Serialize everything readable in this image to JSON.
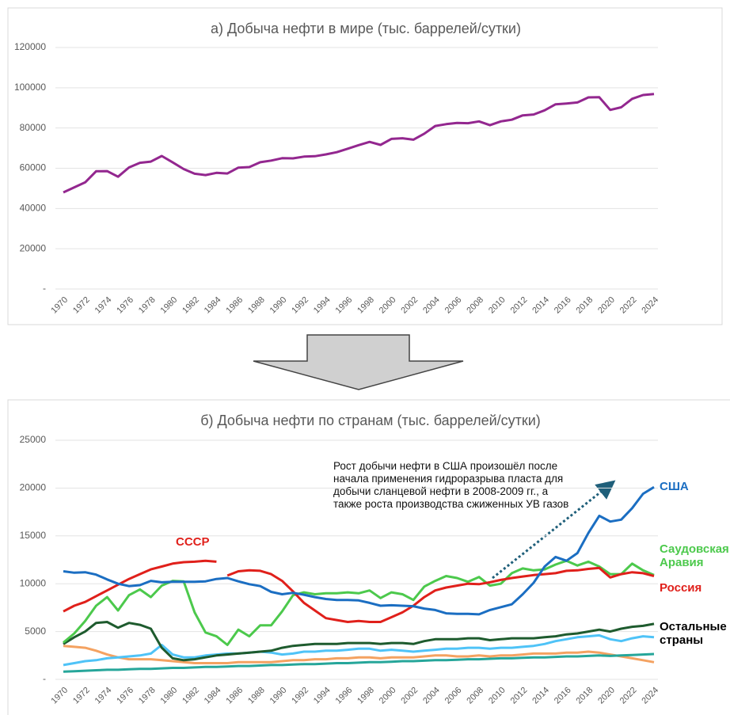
{
  "chart_data": [
    {
      "type": "line",
      "title": "а) Добыча нефти в мире (тыс. баррелей/сутки)",
      "color": "#93278f",
      "grid": true,
      "x": [
        1970,
        1971,
        1972,
        1973,
        1974,
        1975,
        1976,
        1977,
        1978,
        1979,
        1980,
        1981,
        1982,
        1983,
        1984,
        1985,
        1986,
        1987,
        1988,
        1989,
        1990,
        1991,
        1992,
        1993,
        1994,
        1995,
        1996,
        1997,
        1998,
        1999,
        2000,
        2001,
        2002,
        2003,
        2004,
        2005,
        2006,
        2007,
        2008,
        2009,
        2010,
        2011,
        2012,
        2013,
        2014,
        2015,
        2016,
        2017,
        2018,
        2019,
        2020,
        2021,
        2022,
        2023,
        2024
      ],
      "values": [
        48000,
        50500,
        53000,
        58500,
        58600,
        55800,
        60400,
        62700,
        63300,
        66100,
        62900,
        59600,
        57300,
        56600,
        57700,
        57400,
        60300,
        60600,
        63000,
        63800,
        65000,
        64900,
        65800,
        66000,
        66900,
        68000,
        69700,
        71500,
        73100,
        71600,
        74600,
        74900,
        74200,
        77200,
        81000,
        81900,
        82500,
        82400,
        83300,
        81400,
        83300,
        84100,
        86300,
        86700,
        88800,
        91800,
        92200,
        92700,
        95200,
        95300,
        89000,
        90300,
        94500,
        96400,
        96900
      ],
      "xlim": [
        1970,
        2024
      ],
      "xticks": [
        1970,
        1972,
        1974,
        1976,
        1978,
        1980,
        1982,
        1984,
        1986,
        1988,
        1990,
        1992,
        1994,
        1996,
        1998,
        2000,
        2002,
        2004,
        2006,
        2008,
        2010,
        2012,
        2014,
        2016,
        2018,
        2020,
        2022,
        2024
      ],
      "ylim": [
        0,
        120000
      ],
      "yticks": [
        {
          "value": 0,
          "label": "-"
        },
        20000,
        40000,
        60000,
        80000,
        100000,
        120000
      ]
    },
    {
      "type": "line",
      "title": "б) Добыча нефти по странам (тыс. баррелей/сутки)",
      "grid": true,
      "annotation": "Рост добычи нефти в США произошёл после начала применения гидроразрыва пласта для добычи сланцевой нефти в 2008-2009 гг., а также роста производства сжиженных УВ газов",
      "x": [
        1970,
        1971,
        1972,
        1973,
        1974,
        1975,
        1976,
        1977,
        1978,
        1979,
        1980,
        1981,
        1982,
        1983,
        1984,
        1985,
        1986,
        1987,
        1988,
        1989,
        1990,
        1991,
        1992,
        1993,
        1994,
        1995,
        1996,
        1997,
        1998,
        1999,
        2000,
        2001,
        2002,
        2003,
        2004,
        2005,
        2006,
        2007,
        2008,
        2009,
        2010,
        2011,
        2012,
        2013,
        2014,
        2015,
        2016,
        2017,
        2018,
        2019,
        2020,
        2021,
        2022,
        2023,
        2024
      ],
      "xlim": [
        1970,
        2024
      ],
      "xticks": [
        1970,
        1972,
        1974,
        1976,
        1978,
        1980,
        1982,
        1984,
        1986,
        1988,
        1990,
        1992,
        1994,
        1996,
        1998,
        2000,
        2002,
        2004,
        2006,
        2008,
        2010,
        2012,
        2014,
        2016,
        2018,
        2020,
        2022,
        2024
      ],
      "ylim": [
        0,
        25000
      ],
      "yticks": [
        {
          "value": 0,
          "label": "-"
        },
        5000,
        10000,
        15000,
        20000,
        25000
      ],
      "series": [
        {
          "color": "#f4a261",
          "values": [
            3500,
            3400,
            3300,
            3000,
            2600,
            2300,
            2100,
            2100,
            2100,
            2000,
            1900,
            1800,
            1700,
            1700,
            1700,
            1700,
            1800,
            1800,
            1800,
            1800,
            1900,
            2000,
            2000,
            2100,
            2100,
            2200,
            2200,
            2300,
            2300,
            2200,
            2300,
            2300,
            2300,
            2400,
            2500,
            2500,
            2400,
            2400,
            2500,
            2400,
            2500,
            2500,
            2600,
            2700,
            2700,
            2700,
            2800,
            2800,
            2900,
            2800,
            2600,
            2400,
            2200,
            2000,
            1800
          ]
        },
        {
          "color": "#4fc3f7",
          "values": [
            1500,
            1700,
            1900,
            2000,
            2200,
            2300,
            2400,
            2500,
            2700,
            3600,
            2600,
            2300,
            2300,
            2500,
            2600,
            2700,
            2700,
            2800,
            2900,
            2800,
            2600,
            2700,
            2900,
            2900,
            3000,
            3000,
            3100,
            3200,
            3200,
            3000,
            3100,
            3000,
            2900,
            3000,
            3100,
            3200,
            3200,
            3300,
            3300,
            3200,
            3300,
            3300,
            3400,
            3500,
            3700,
            4000,
            4200,
            4400,
            4500,
            4600,
            4200,
            4000,
            4300,
            4500,
            4400
          ]
        },
        {
          "color": "#26a69a",
          "values": [
            800,
            850,
            900,
            950,
            1000,
            1000,
            1050,
            1100,
            1100,
            1150,
            1200,
            1200,
            1250,
            1300,
            1300,
            1350,
            1400,
            1400,
            1450,
            1500,
            1500,
            1550,
            1600,
            1600,
            1650,
            1700,
            1700,
            1750,
            1800,
            1800,
            1850,
            1900,
            1900,
            1950,
            2000,
            2000,
            2050,
            2100,
            2100,
            2150,
            2200,
            2200,
            2250,
            2300,
            2300,
            2350,
            2400,
            2400,
            2450,
            2500,
            2450,
            2500,
            2550,
            2600,
            2650
          ]
        },
        {
          "name": "Остальные страны",
          "color": "#1e5b2e",
          "values": [
            3700,
            4400,
            5000,
            5900,
            6000,
            5400,
            5900,
            5700,
            5300,
            3300,
            2200,
            2000,
            2100,
            2300,
            2500,
            2600,
            2700,
            2800,
            2900,
            3000,
            3300,
            3500,
            3600,
            3700,
            3700,
            3700,
            3800,
            3800,
            3800,
            3700,
            3800,
            3800,
            3700,
            4000,
            4200,
            4200,
            4200,
            4300,
            4300,
            4100,
            4200,
            4300,
            4300,
            4300,
            4400,
            4500,
            4700,
            4800,
            5000,
            5200,
            5000,
            5300,
            5500,
            5600,
            5800
          ]
        },
        {
          "name": "Саудовская Аравия",
          "color": "#4cc94c",
          "values": [
            3850,
            4800,
            6100,
            7700,
            8600,
            7200,
            8800,
            9400,
            8600,
            9800,
            10300,
            10250,
            7000,
            4900,
            4500,
            3600,
            5200,
            4500,
            5650,
            5650,
            7100,
            8800,
            9100,
            8900,
            9000,
            9000,
            9100,
            9000,
            9300,
            8500,
            9100,
            8900,
            8300,
            9700,
            10300,
            10800,
            10600,
            10200,
            10700,
            9800,
            10000,
            11100,
            11600,
            11400,
            11500,
            12000,
            12400,
            11900,
            12300,
            11800,
            11000,
            11000,
            12100,
            11400,
            10900
          ]
        },
        {
          "name": "СССР",
          "color": "#e0201b",
          "values": [
            7100,
            7700,
            8100,
            8700,
            9300,
            9900,
            10500,
            11000,
            11500,
            11800,
            12100,
            12250,
            12300,
            12400,
            12300,
            null,
            null,
            null,
            null,
            null,
            null,
            null,
            null,
            null,
            null,
            null,
            null,
            null,
            null,
            null,
            null,
            null,
            null,
            null,
            null,
            null,
            null,
            null,
            null,
            null,
            null,
            null,
            null,
            null,
            null,
            null,
            null,
            null,
            null,
            null,
            null,
            null,
            null,
            null,
            null
          ]
        },
        {
          "name": "Россия",
          "color": "#e0201b",
          "values": [
            null,
            null,
            null,
            null,
            null,
            null,
            null,
            null,
            null,
            null,
            null,
            null,
            null,
            null,
            null,
            10850,
            11300,
            11400,
            11350,
            11000,
            10300,
            9200,
            8000,
            7200,
            6400,
            6200,
            6000,
            6100,
            6000,
            6000,
            6500,
            7000,
            7700,
            8600,
            9300,
            9600,
            9800,
            10000,
            9950,
            10150,
            10400,
            10600,
            10750,
            10900,
            11000,
            11100,
            11350,
            11400,
            11550,
            11650,
            10650,
            11000,
            11200,
            11100,
            10800
          ]
        },
        {
          "name": "США",
          "color": "#1b6ec2",
          "values": [
            11300,
            11150,
            11200,
            10950,
            10450,
            10000,
            9750,
            9850,
            10300,
            10150,
            10200,
            10200,
            10200,
            10250,
            10500,
            10600,
            10250,
            9950,
            9750,
            9150,
            8900,
            9050,
            8850,
            8600,
            8400,
            8300,
            8300,
            8250,
            8000,
            7700,
            7750,
            7700,
            7650,
            7400,
            7250,
            6900,
            6850,
            6850,
            6800,
            7250,
            7550,
            7850,
            8900,
            10100,
            11800,
            12800,
            12400,
            13200,
            15300,
            17100,
            16500,
            16700,
            17900,
            19400,
            20100
          ]
        }
      ]
    }
  ]
}
